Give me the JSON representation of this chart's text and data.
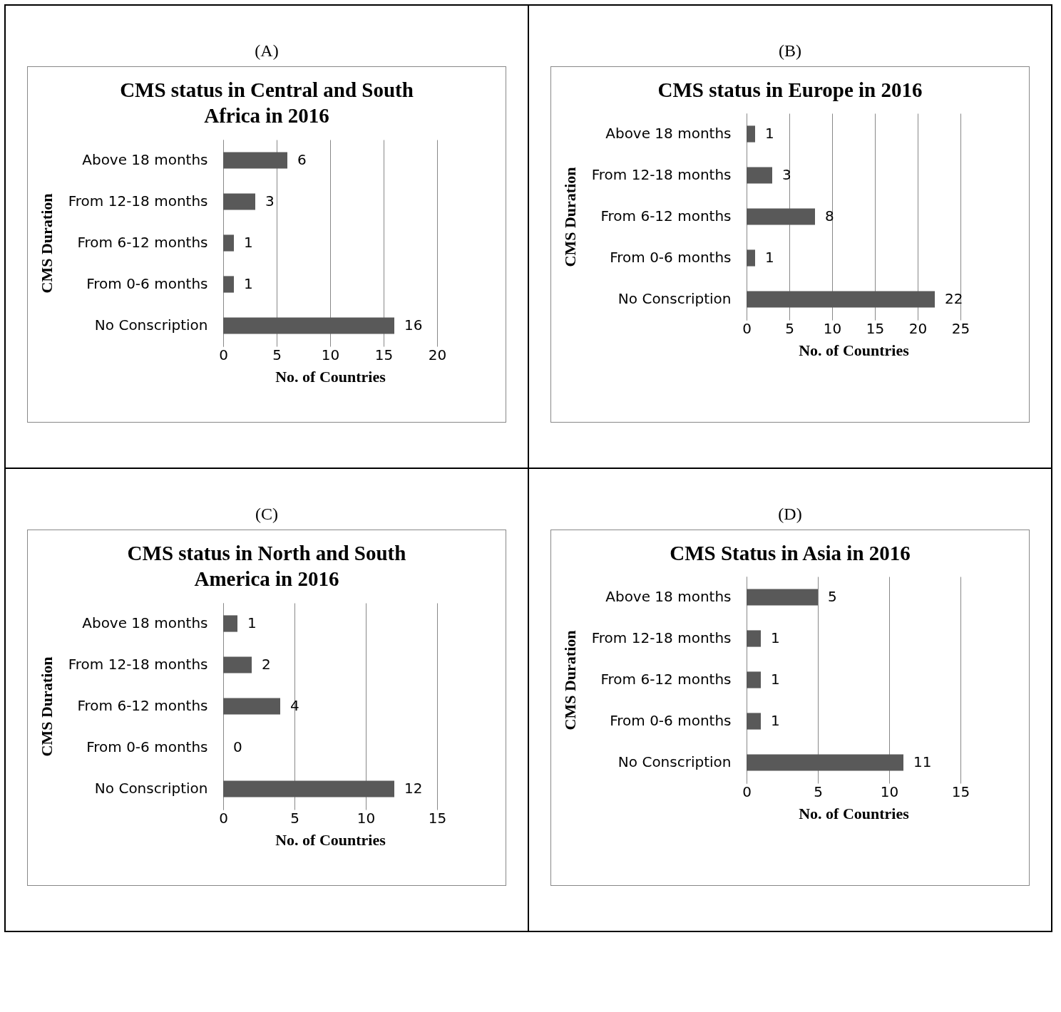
{
  "chart_data": [
    {
      "type": "bar",
      "orientation": "horizontal",
      "annotations": [
        "(A)"
      ],
      "title": "CMS status in Central and South Africa in 2016",
      "xlabel": "No. of Countries",
      "ylabel": "CMS Duration",
      "categories": [
        "Above 18 months",
        "From 12-18 months",
        "From 6-12 months",
        "From 0-6 months",
        "No Conscription"
      ],
      "values": [
        6,
        3,
        1,
        1,
        16
      ],
      "color": "#595959",
      "xlim": [
        0,
        20
      ],
      "xticks": [
        0,
        5,
        10,
        15,
        20
      ],
      "grid": "x",
      "data_labels": true
    },
    {
      "type": "bar",
      "orientation": "horizontal",
      "annotations": [
        "(B)"
      ],
      "title": "CMS status in Europe in 2016",
      "xlabel": "No. of Countries",
      "ylabel": "CMS Duration",
      "categories": [
        "Above 18 months",
        "From 12-18 months",
        "From 6-12 months",
        "From 0-6 months",
        "No Conscription"
      ],
      "values": [
        1,
        3,
        8,
        1,
        22
      ],
      "color": "#595959",
      "xlim": [
        0,
        25
      ],
      "xticks": [
        0,
        5,
        10,
        15,
        20,
        25
      ],
      "grid": "x",
      "data_labels": true
    },
    {
      "type": "bar",
      "orientation": "horizontal",
      "annotations": [
        "(C)"
      ],
      "title": "CMS status in North and South America in 2016",
      "xlabel": "No. of Countries",
      "ylabel": "CMS Duration",
      "categories": [
        "Above 18 months",
        "From 12-18 months",
        "From 6-12 months",
        "From 0-6 months",
        "No Conscription"
      ],
      "values": [
        1,
        2,
        4,
        0,
        12
      ],
      "color": "#595959",
      "xlim": [
        0,
        15
      ],
      "xticks": [
        0,
        5,
        10,
        15
      ],
      "grid": "x",
      "data_labels": true
    },
    {
      "type": "bar",
      "orientation": "horizontal",
      "annotations": [
        "(D)"
      ],
      "title": "CMS Status in Asia in 2016",
      "xlabel": "No. of Countries",
      "ylabel": "CMS Duration",
      "categories": [
        "Above 18 months",
        "From 12-18 months",
        "From 6-12 months",
        "From 0-6 months",
        "No Conscription"
      ],
      "values": [
        5,
        1,
        1,
        1,
        11
      ],
      "color": "#595959",
      "xlim": [
        0,
        15
      ],
      "xticks": [
        0,
        5,
        10,
        15
      ],
      "grid": "x",
      "data_labels": true
    }
  ]
}
